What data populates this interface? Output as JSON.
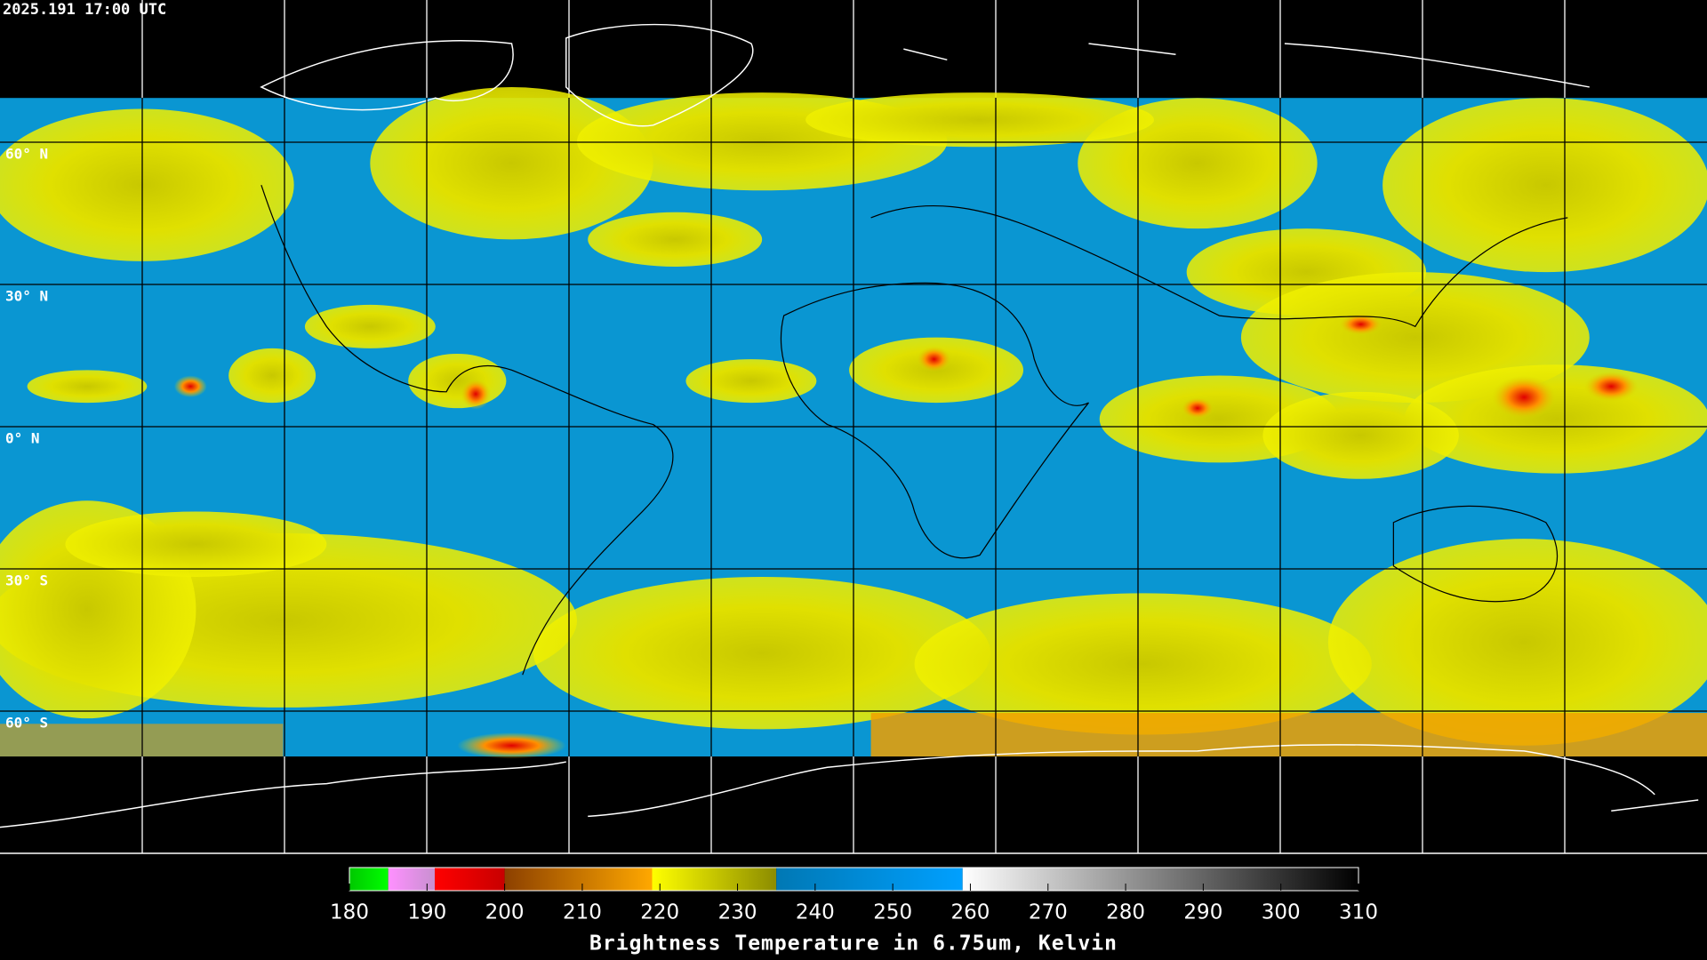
{
  "timestamp": "2025.191 17:00 UTC",
  "lat_ticks": [
    {
      "value": 60,
      "label": "60° N"
    },
    {
      "value": 30,
      "label": "30° N"
    },
    {
      "value": 0,
      "label": "0° N"
    },
    {
      "value": -30,
      "label": "30° S"
    },
    {
      "value": -60,
      "label": "60° S"
    }
  ],
  "colorbar": {
    "title": "Brightness Temperature in 6.75um, Kelvin",
    "lim": [
      180,
      310
    ],
    "ticks": [
      180,
      190,
      200,
      210,
      220,
      230,
      240,
      250,
      260,
      270,
      280,
      290,
      300,
      310
    ],
    "segments": [
      {
        "from": 180,
        "to": 185,
        "colors": [
          "#00c800",
          "#00ff00"
        ]
      },
      {
        "from": 185,
        "to": 191,
        "colors": [
          "#ff90ff",
          "#c890d0"
        ]
      },
      {
        "from": 191,
        "to": 200,
        "colors": [
          "#ff0000",
          "#c80000"
        ]
      },
      {
        "from": 200,
        "to": 219,
        "colors": [
          "#8c4000",
          "#ffa800"
        ]
      },
      {
        "from": 219,
        "to": 235,
        "colors": [
          "#ffff00",
          "#8c8c00"
        ]
      },
      {
        "from": 235,
        "to": 259,
        "colors": [
          "#0078b4",
          "#00a0ff"
        ]
      },
      {
        "from": 259,
        "to": 310,
        "colors": [
          "#ffffff",
          "#000000"
        ]
      }
    ]
  }
}
